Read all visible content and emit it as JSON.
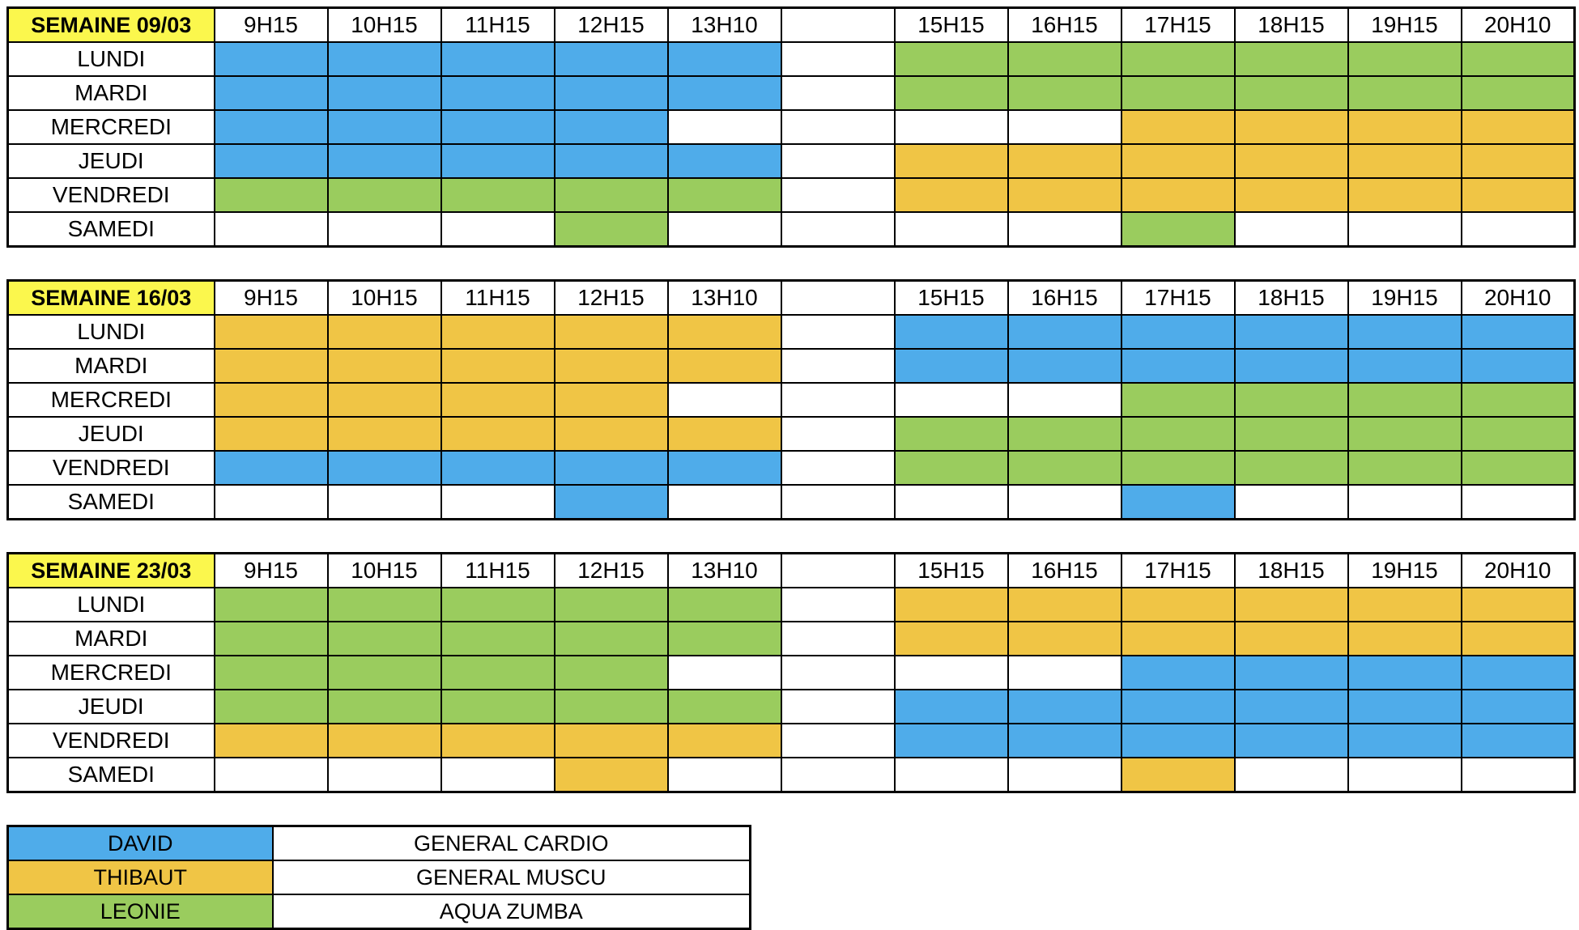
{
  "columns": [
    "9H15",
    "10H15",
    "11H15",
    "12H15",
    "13H10",
    "",
    "15H15",
    "16H15",
    "17H15",
    "18H15",
    "19H15",
    "20H10"
  ],
  "colors": {
    "david": "#4FACEA",
    "thibaut": "#F0C545",
    "leonie": "#9ACC5E",
    "week_header": "#FBF74D",
    "empty": "#FFFFFF",
    "border": "#000000"
  },
  "weeks": [
    {
      "title": "SEMAINE 09/03",
      "rows": [
        {
          "day": "LUNDI",
          "cells": [
            "david",
            "david",
            "david",
            "david",
            "david",
            "",
            "leonie",
            "leonie",
            "leonie",
            "leonie",
            "leonie",
            "leonie"
          ]
        },
        {
          "day": "MARDI",
          "cells": [
            "david",
            "david",
            "david",
            "david",
            "david",
            "",
            "leonie",
            "leonie",
            "leonie",
            "leonie",
            "leonie",
            "leonie"
          ]
        },
        {
          "day": "MERCREDI",
          "cells": [
            "david",
            "david",
            "david",
            "david",
            "",
            "",
            "",
            "",
            "thibaut",
            "thibaut",
            "thibaut",
            "thibaut"
          ]
        },
        {
          "day": "JEUDI",
          "cells": [
            "david",
            "david",
            "david",
            "david",
            "david",
            "",
            "thibaut",
            "thibaut",
            "thibaut",
            "thibaut",
            "thibaut",
            "thibaut"
          ]
        },
        {
          "day": "VENDREDI",
          "cells": [
            "leonie",
            "leonie",
            "leonie",
            "leonie",
            "leonie",
            "",
            "thibaut",
            "thibaut",
            "thibaut",
            "thibaut",
            "thibaut",
            "thibaut"
          ]
        },
        {
          "day": "SAMEDI",
          "cells": [
            "",
            "",
            "",
            "leonie",
            "",
            "",
            "",
            "",
            "leonie",
            "",
            "",
            ""
          ]
        }
      ]
    },
    {
      "title": "SEMAINE 16/03",
      "rows": [
        {
          "day": "LUNDI",
          "cells": [
            "thibaut",
            "thibaut",
            "thibaut",
            "thibaut",
            "thibaut",
            "",
            "david",
            "david",
            "david",
            "david",
            "david",
            "david"
          ]
        },
        {
          "day": "MARDI",
          "cells": [
            "thibaut",
            "thibaut",
            "thibaut",
            "thibaut",
            "thibaut",
            "",
            "david",
            "david",
            "david",
            "david",
            "david",
            "david"
          ]
        },
        {
          "day": "MERCREDI",
          "cells": [
            "thibaut",
            "thibaut",
            "thibaut",
            "thibaut",
            "",
            "",
            "",
            "",
            "leonie",
            "leonie",
            "leonie",
            "leonie"
          ]
        },
        {
          "day": "JEUDI",
          "cells": [
            "thibaut",
            "thibaut",
            "thibaut",
            "thibaut",
            "thibaut",
            "",
            "leonie",
            "leonie",
            "leonie",
            "leonie",
            "leonie",
            "leonie"
          ]
        },
        {
          "day": "VENDREDI",
          "cells": [
            "david",
            "david",
            "david",
            "david",
            "david",
            "",
            "leonie",
            "leonie",
            "leonie",
            "leonie",
            "leonie",
            "leonie"
          ]
        },
        {
          "day": "SAMEDI",
          "cells": [
            "",
            "",
            "",
            "david",
            "",
            "",
            "",
            "",
            "david",
            "",
            "",
            ""
          ]
        }
      ]
    },
    {
      "title": "SEMAINE 23/03",
      "rows": [
        {
          "day": "LUNDI",
          "cells": [
            "leonie",
            "leonie",
            "leonie",
            "leonie",
            "leonie",
            "",
            "thibaut",
            "thibaut",
            "thibaut",
            "thibaut",
            "thibaut",
            "thibaut"
          ]
        },
        {
          "day": "MARDI",
          "cells": [
            "leonie",
            "leonie",
            "leonie",
            "leonie",
            "leonie",
            "",
            "thibaut",
            "thibaut",
            "thibaut",
            "thibaut",
            "thibaut",
            "thibaut"
          ]
        },
        {
          "day": "MERCREDI",
          "cells": [
            "leonie",
            "leonie",
            "leonie",
            "leonie",
            "",
            "",
            "",
            "",
            "david",
            "david",
            "david",
            "david"
          ]
        },
        {
          "day": "JEUDI",
          "cells": [
            "leonie",
            "leonie",
            "leonie",
            "leonie",
            "leonie",
            "",
            "david",
            "david",
            "david",
            "david",
            "david",
            "david"
          ]
        },
        {
          "day": "VENDREDI",
          "cells": [
            "thibaut",
            "thibaut",
            "thibaut",
            "thibaut",
            "thibaut",
            "",
            "david",
            "david",
            "david",
            "david",
            "david",
            "david"
          ]
        },
        {
          "day": "SAMEDI",
          "cells": [
            "",
            "",
            "",
            "thibaut",
            "",
            "",
            "",
            "",
            "thibaut",
            "",
            "",
            ""
          ]
        }
      ]
    }
  ],
  "legend": [
    {
      "name": "DAVID",
      "color": "david",
      "activity": "GENERAL CARDIO"
    },
    {
      "name": "THIBAUT",
      "color": "thibaut",
      "activity": "GENERAL MUSCU"
    },
    {
      "name": "LEONIE",
      "color": "leonie",
      "activity": "AQUA ZUMBA"
    }
  ]
}
